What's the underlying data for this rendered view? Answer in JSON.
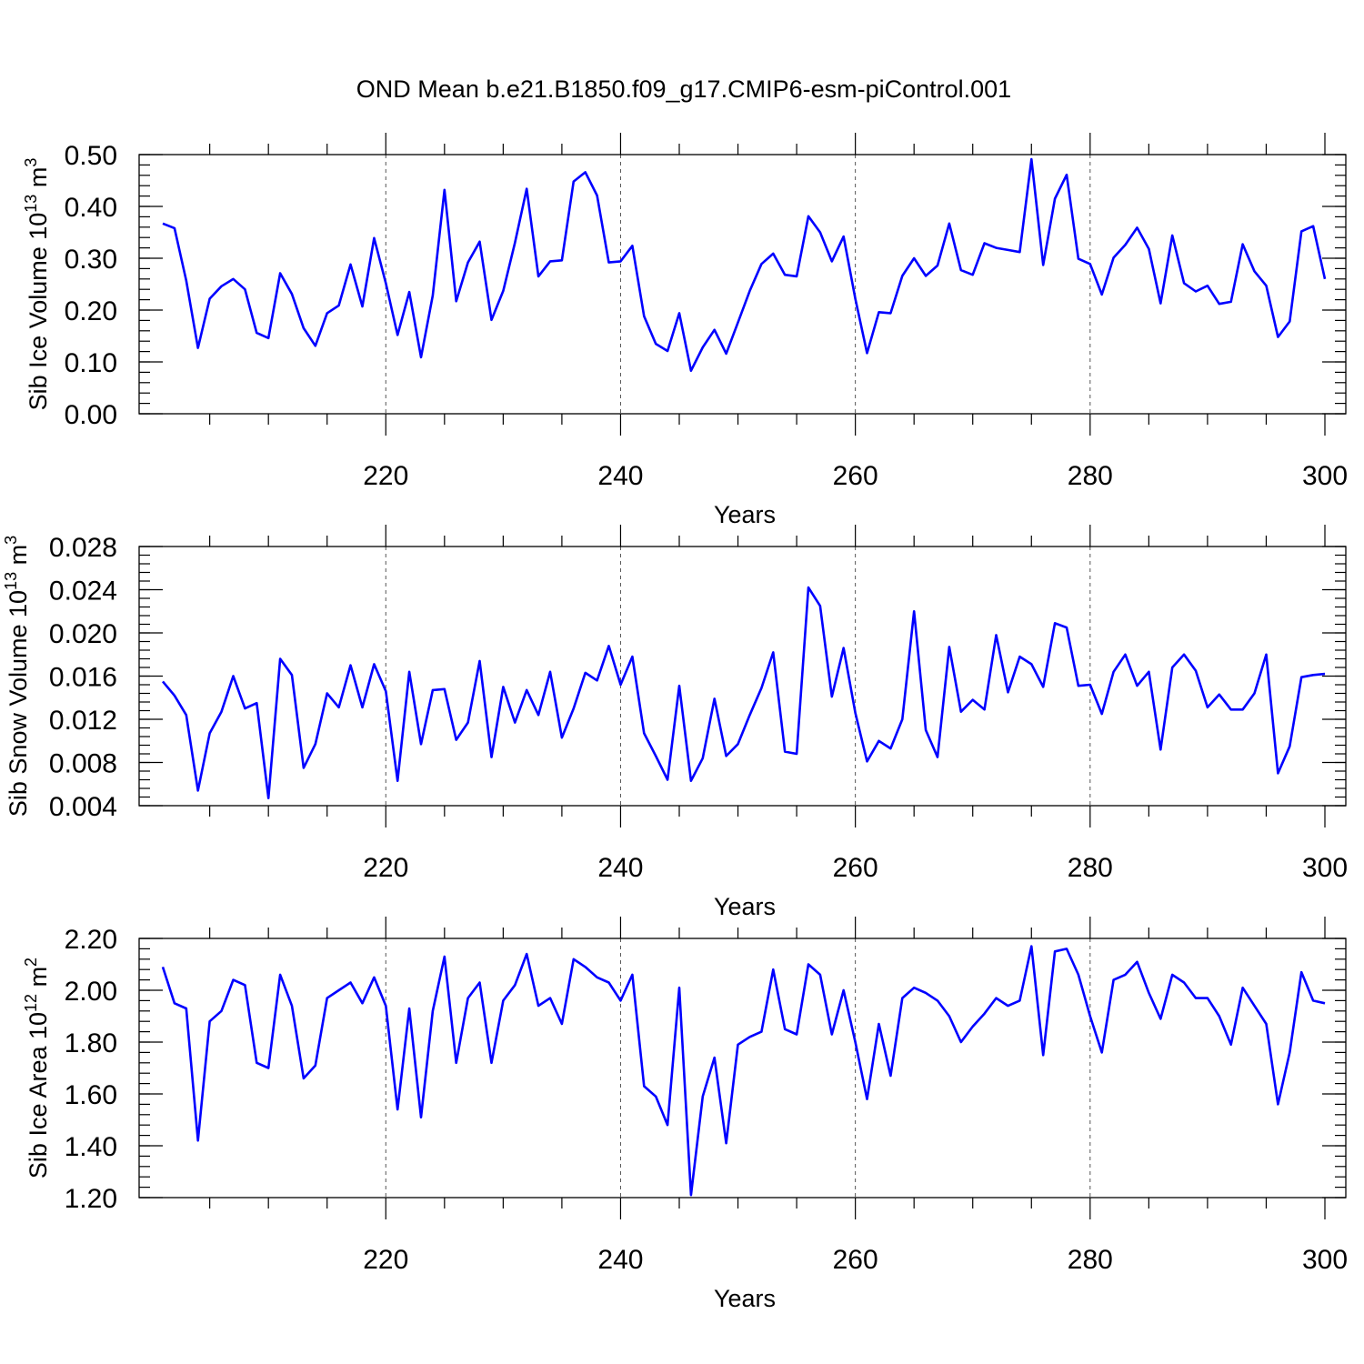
{
  "title": "OND Mean b.e21.B1850.f09_g17.CMIP6-esm-piControl.001",
  "chart_data": [
    {
      "type": "line",
      "id": "ice-volume",
      "ylabel_main": "Sib Ice Volume 10",
      "ylabel_exp": "13",
      "ylabel_unit": " m",
      "ylabel_unit_exp": "3",
      "xlabel": "Years",
      "xlim": [
        201,
        300
      ],
      "ylim": [
        0,
        0.5
      ],
      "xticks": [
        220,
        240,
        260,
        280,
        300
      ],
      "xtick_labels": [
        "220",
        "240",
        "260",
        "280",
        "300"
      ],
      "yticks": [
        0,
        0.1,
        0.2,
        0.3,
        0.4,
        0.5
      ],
      "ytick_labels": [
        "0.00",
        "0.10",
        "0.20",
        "0.30",
        "0.40",
        "0.50"
      ],
      "yminor": 0.02,
      "color": "#0000ff",
      "x0": 201,
      "values": [
        0.367,
        0.358,
        0.257,
        0.127,
        0.222,
        0.246,
        0.26,
        0.24,
        0.156,
        0.146,
        0.271,
        0.231,
        0.165,
        0.131,
        0.194,
        0.209,
        0.288,
        0.207,
        0.339,
        0.252,
        0.152,
        0.235,
        0.109,
        0.228,
        0.432,
        0.217,
        0.292,
        0.332,
        0.181,
        0.237,
        0.33,
        0.434,
        0.265,
        0.294,
        0.296,
        0.448,
        0.466,
        0.421,
        0.292,
        0.294,
        0.324,
        0.188,
        0.135,
        0.121,
        0.194,
        0.083,
        0.128,
        0.162,
        0.116,
        0.176,
        0.237,
        0.289,
        0.309,
        0.268,
        0.265,
        0.381,
        0.35,
        0.294,
        0.342,
        0.222,
        0.117,
        0.196,
        0.194,
        0.266,
        0.3,
        0.266,
        0.286,
        0.367,
        0.277,
        0.268,
        0.329,
        0.32,
        0.316,
        0.312,
        0.491,
        0.287,
        0.415,
        0.461,
        0.299,
        0.289,
        0.23,
        0.301,
        0.326,
        0.359,
        0.318,
        0.213,
        0.344,
        0.252,
        0.236,
        0.247,
        0.212,
        0.216,
        0.327,
        0.275,
        0.247,
        0.148,
        0.178,
        0.352,
        0.362,
        0.26
      ]
    },
    {
      "type": "line",
      "id": "snow-volume",
      "ylabel_main": "Sib Snow Volume 10",
      "ylabel_exp": "13",
      "ylabel_unit": " m",
      "ylabel_unit_exp": "3",
      "xlabel": "Years",
      "xlim": [
        201,
        300
      ],
      "ylim": [
        0.004,
        0.028
      ],
      "xticks": [
        220,
        240,
        260,
        280,
        300
      ],
      "xtick_labels": [
        "220",
        "240",
        "260",
        "280",
        "300"
      ],
      "yticks": [
        0.004,
        0.008,
        0.012,
        0.016,
        0.02,
        0.024,
        0.028
      ],
      "ytick_labels": [
        "0.004",
        "0.008",
        "0.012",
        "0.016",
        "0.020",
        "0.024",
        "0.028"
      ],
      "yminor": 0.0008,
      "color": "#0000ff",
      "x0": 201,
      "values": [
        0.0155,
        0.0142,
        0.0124,
        0.0054,
        0.0107,
        0.0127,
        0.016,
        0.013,
        0.0135,
        0.0047,
        0.0176,
        0.0161,
        0.0075,
        0.0097,
        0.0144,
        0.0131,
        0.017,
        0.0131,
        0.0171,
        0.0146,
        0.0063,
        0.0164,
        0.0097,
        0.0147,
        0.0148,
        0.0101,
        0.0117,
        0.0174,
        0.0085,
        0.015,
        0.0117,
        0.0147,
        0.0124,
        0.0164,
        0.0103,
        0.013,
        0.0163,
        0.0156,
        0.0188,
        0.0152,
        0.0178,
        0.0107,
        0.0086,
        0.0064,
        0.0151,
        0.0063,
        0.0084,
        0.0139,
        0.0086,
        0.0097,
        0.0124,
        0.0149,
        0.0182,
        0.009,
        0.0088,
        0.0242,
        0.0225,
        0.0141,
        0.0186,
        0.0126,
        0.0081,
        0.01,
        0.0093,
        0.012,
        0.022,
        0.011,
        0.0085,
        0.0187,
        0.0127,
        0.0138,
        0.0129,
        0.0198,
        0.0145,
        0.0178,
        0.0171,
        0.015,
        0.0209,
        0.0205,
        0.0151,
        0.0152,
        0.0125,
        0.0164,
        0.018,
        0.0151,
        0.0164,
        0.0092,
        0.0168,
        0.018,
        0.0165,
        0.0131,
        0.0143,
        0.0129,
        0.0129,
        0.0144,
        0.018,
        0.007,
        0.0095,
        0.0159,
        0.0161,
        0.0162
      ]
    },
    {
      "type": "line",
      "id": "ice-area",
      "ylabel_main": "Sib Ice Area 10",
      "ylabel_exp": "12",
      "ylabel_unit": " m",
      "ylabel_unit_exp": "2",
      "xlabel": "Years",
      "xlim": [
        201,
        300
      ],
      "ylim": [
        1.2,
        2.2
      ],
      "xticks": [
        220,
        240,
        260,
        280,
        300
      ],
      "xtick_labels": [
        "220",
        "240",
        "260",
        "280",
        "300"
      ],
      "yticks": [
        1.2,
        1.4,
        1.6,
        1.8,
        2.0,
        2.2
      ],
      "ytick_labels": [
        "1.20",
        "1.40",
        "1.60",
        "1.80",
        "2.00",
        "2.20"
      ],
      "yminor": 0.04,
      "color": "#0000ff",
      "x0": 201,
      "values": [
        2.09,
        1.95,
        1.93,
        1.42,
        1.88,
        1.92,
        2.04,
        2.02,
        1.72,
        1.7,
        2.06,
        1.94,
        1.66,
        1.71,
        1.97,
        2.0,
        2.03,
        1.95,
        2.05,
        1.94,
        1.54,
        1.93,
        1.51,
        1.92,
        2.13,
        1.72,
        1.97,
        2.03,
        1.72,
        1.96,
        2.02,
        2.14,
        1.94,
        1.97,
        1.87,
        2.12,
        2.09,
        2.05,
        2.03,
        1.96,
        2.06,
        1.63,
        1.59,
        1.48,
        2.01,
        1.21,
        1.59,
        1.74,
        1.41,
        1.79,
        1.82,
        1.84,
        2.08,
        1.85,
        1.83,
        2.1,
        2.06,
        1.83,
        2.0,
        1.8,
        1.58,
        1.87,
        1.67,
        1.97,
        2.01,
        1.99,
        1.96,
        1.9,
        1.8,
        1.86,
        1.91,
        1.97,
        1.94,
        1.96,
        2.17,
        1.75,
        2.15,
        2.16,
        2.06,
        1.9,
        1.76,
        2.04,
        2.06,
        2.11,
        1.99,
        1.89,
        2.06,
        2.03,
        1.97,
        1.97,
        1.9,
        1.79,
        2.01,
        1.94,
        1.87,
        1.56,
        1.76,
        2.07,
        1.96,
        1.95
      ]
    }
  ]
}
